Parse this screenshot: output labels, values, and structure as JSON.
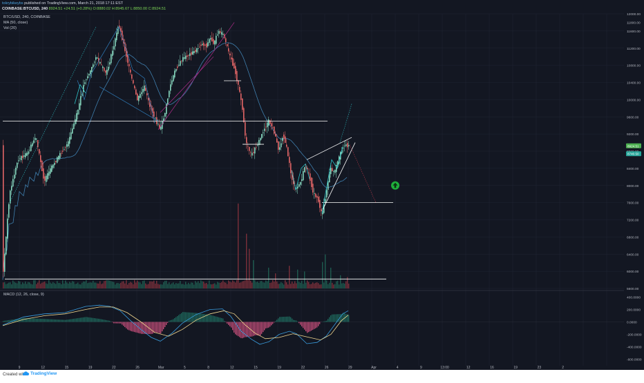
{
  "header": {
    "author": "tokrybikeybs",
    "published": " published on TradingView.com, March 21, 2018 17:11 EST",
    "symbol": "COINBASE:BTCUSD, 240",
    "price_text": "8924.51",
    "change_text": "+24.51 (+0.28%)",
    "ohlc_text": "O:8880.02 H:8945.67 L:8850.00 C:8924.51",
    "title_line": "BTC/USD, 240, COINBASE",
    "ma_label": "MA (50, close)",
    "vol_label": "Vol (20)",
    "macd_label": "MACD (12, 26, close, 9)"
  },
  "footer": {
    "created_with": "Created with",
    "brand": "TradingView"
  },
  "colors": {
    "background": "#131722",
    "grid": "#1f2433",
    "up_candle": "#8de3c8",
    "down_candle": "#ef6a6a",
    "ma_line": "#3f7fae",
    "macd_line": "#3a9ee0",
    "signal_line": "#f2d78f",
    "hist_up": "#1e6b5e",
    "hist_down": "#c94f7c",
    "annotation_white": "#ffffff",
    "annotation_cyan": "#2ec4c8",
    "annotation_blue": "#2f7bb8",
    "annotation_purple": "#b02c8c",
    "annotation_red_dotted": "#c0394a",
    "arrow_green": "#1fae3b"
  },
  "chart_data": {
    "type": "candlestick",
    "symbol": "BTCUSD",
    "exchange": "COINBASE",
    "interval": "240",
    "price_axis": {
      "min": 5600,
      "max": 12000,
      "ticks": [
        "12000.00",
        "11600.00",
        "11200.00",
        "10800.00",
        "10400.00",
        "10000.00",
        "9600.00",
        "9200.00",
        "8800.00",
        "8400.00",
        "8000.00",
        "7600.00",
        "7200.00",
        "6800.00",
        "6400.00",
        "6000.00",
        "5600.00"
      ],
      "tick_values": [
        12000,
        11600,
        11200,
        10800,
        10400,
        10000,
        9600,
        9200,
        8800,
        8400,
        8000,
        7600,
        7200,
        6800,
        6400,
        6000,
        5600
      ],
      "extra_tick": {
        "label": "11800.00",
        "value": 11800
      }
    },
    "macd_axis": {
      "ticks": [
        "400.0000",
        "200.0000",
        "0.0000",
        "-200.0000",
        "-400.0000",
        "-600.0000"
      ],
      "tick_values": [
        400,
        200,
        0,
        -200,
        -400,
        -600
      ],
      "min": -650,
      "max": 450
    },
    "x_axis": {
      "ticks": [
        "9",
        "12",
        "15",
        "19",
        "22",
        "26",
        "Mar",
        "5",
        "8",
        "12",
        "15",
        "19",
        "22",
        "26",
        "29",
        "Apr",
        "4",
        "9",
        "13:00",
        "12",
        "16",
        "19",
        "23",
        "2"
      ]
    },
    "price_tags": [
      {
        "text": "8924.51",
        "value": 8924.51,
        "color": "#4caf50"
      },
      {
        "text": "8740.50",
        "value": 8740.5,
        "color": "#26a69a"
      }
    ],
    "path": [
      [
        0,
        5800
      ],
      [
        10,
        7800
      ],
      [
        22,
        8600
      ],
      [
        36,
        8750
      ],
      [
        48,
        9150
      ],
      [
        60,
        8100
      ],
      [
        70,
        8400
      ],
      [
        82,
        8700
      ],
      [
        95,
        9000
      ],
      [
        108,
        9700
      ],
      [
        118,
        10400
      ],
      [
        128,
        10700
      ],
      [
        135,
        11000
      ],
      [
        150,
        10600
      ],
      [
        160,
        11200
      ],
      [
        168,
        11750
      ],
      [
        175,
        11300
      ],
      [
        185,
        10600
      ],
      [
        195,
        10000
      ],
      [
        205,
        10300
      ],
      [
        212,
        9900
      ],
      [
        222,
        9500
      ],
      [
        228,
        9300
      ],
      [
        235,
        9700
      ],
      [
        242,
        10300
      ],
      [
        250,
        10700
      ],
      [
        260,
        10950
      ],
      [
        270,
        11050
      ],
      [
        280,
        11150
      ],
      [
        288,
        11300
      ],
      [
        295,
        11250
      ],
      [
        300,
        11450
      ],
      [
        306,
        11300
      ],
      [
        312,
        11600
      ],
      [
        320,
        11500
      ],
      [
        328,
        11050
      ],
      [
        336,
        10700
      ],
      [
        342,
        10250
      ],
      [
        347,
        9800
      ],
      [
        352,
        9000
      ],
      [
        360,
        8700
      ],
      [
        370,
        9000
      ],
      [
        378,
        9300
      ],
      [
        385,
        9500
      ],
      [
        392,
        9300
      ],
      [
        400,
        8800
      ],
      [
        406,
        9200
      ],
      [
        412,
        8800
      ],
      [
        418,
        8200
      ],
      [
        424,
        7900
      ],
      [
        432,
        8100
      ],
      [
        438,
        8500
      ],
      [
        444,
        8200
      ],
      [
        450,
        7800
      ],
      [
        456,
        7700
      ],
      [
        462,
        7300
      ],
      [
        468,
        7800
      ],
      [
        474,
        8400
      ],
      [
        480,
        8300
      ],
      [
        488,
        8700
      ],
      [
        494,
        8950
      ],
      [
        500,
        8925
      ]
    ],
    "volume": {
      "baseline_price": 5600,
      "scale_max_price": 7800,
      "spikes": [
        {
          "x": 340,
          "v": 0.9
        },
        {
          "x": 352,
          "v": 0.58
        },
        {
          "x": 356,
          "v": 0.42
        },
        {
          "x": 362,
          "v": 0.3
        },
        {
          "x": 384,
          "v": 0.22
        },
        {
          "x": 394,
          "v": 0.16
        },
        {
          "x": 414,
          "v": 0.24
        },
        {
          "x": 426,
          "v": 0.2
        },
        {
          "x": 436,
          "v": 0.18
        },
        {
          "x": 462,
          "v": 0.28
        },
        {
          "x": 466,
          "v": 0.36
        },
        {
          "x": 474,
          "v": 0.22
        },
        {
          "x": 488,
          "v": 0.14
        },
        {
          "x": 498,
          "v": 0.12
        }
      ]
    },
    "macd": {
      "macd": [
        [
          0,
          -50
        ],
        [
          30,
          80
        ],
        [
          60,
          130
        ],
        [
          90,
          150
        ],
        [
          120,
          250
        ],
        [
          140,
          270
        ],
        [
          155,
          250
        ],
        [
          170,
          180
        ],
        [
          185,
          20
        ],
        [
          200,
          -120
        ],
        [
          215,
          -250
        ],
        [
          228,
          -310
        ],
        [
          245,
          -180
        ],
        [
          260,
          -20
        ],
        [
          280,
          120
        ],
        [
          300,
          200
        ],
        [
          318,
          210
        ],
        [
          330,
          90
        ],
        [
          345,
          -150
        ],
        [
          360,
          -280
        ],
        [
          372,
          -360
        ],
        [
          385,
          -320
        ],
        [
          400,
          -200
        ],
        [
          415,
          -150
        ],
        [
          425,
          -190
        ],
        [
          440,
          -350
        ],
        [
          455,
          -330
        ],
        [
          468,
          -230
        ],
        [
          480,
          -50
        ],
        [
          492,
          130
        ],
        [
          500,
          180
        ]
      ],
      "signal": [
        [
          0,
          -60
        ],
        [
          30,
          40
        ],
        [
          60,
          100
        ],
        [
          90,
          130
        ],
        [
          120,
          200
        ],
        [
          140,
          240
        ],
        [
          160,
          240
        ],
        [
          180,
          150
        ],
        [
          200,
          0
        ],
        [
          220,
          -170
        ],
        [
          240,
          -230
        ],
        [
          260,
          -120
        ],
        [
          280,
          30
        ],
        [
          300,
          130
        ],
        [
          320,
          180
        ],
        [
          335,
          130
        ],
        [
          350,
          -40
        ],
        [
          365,
          -180
        ],
        [
          380,
          -270
        ],
        [
          400,
          -250
        ],
        [
          420,
          -190
        ],
        [
          440,
          -240
        ],
        [
          460,
          -290
        ],
        [
          475,
          -200
        ],
        [
          490,
          20
        ],
        [
          500,
          110
        ]
      ]
    },
    "annotations": {
      "horizontal_lines": [
        {
          "price": 9500,
          "x1": 0,
          "x2": 470
        },
        {
          "price": 7600,
          "x1": 462,
          "x2": 565
        },
        {
          "price": 5820,
          "x1": 3,
          "x2": 555
        },
        {
          "price": 10440,
          "x1": 320,
          "x2": 345
        },
        {
          "price": 8960,
          "x1": 347,
          "x2": 378
        }
      ],
      "wedge_lines": [
        {
          "x1": 440,
          "p1": 8600,
          "x2": 505,
          "p2": 9120
        },
        {
          "x1": 462,
          "p1": 7400,
          "x2": 510,
          "p2": 9000
        }
      ],
      "projection_target": {
        "x": 540,
        "price": 7600
      },
      "arrow_up": {
        "x": 568,
        "price": 8000
      }
    }
  }
}
